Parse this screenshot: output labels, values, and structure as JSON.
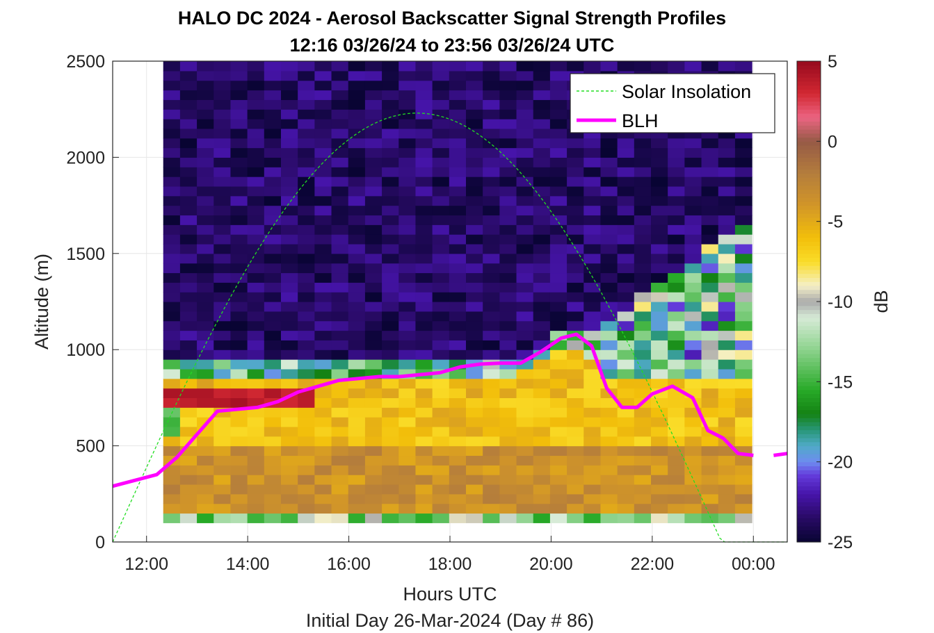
{
  "chart_data": {
    "type": "heatmap",
    "title": "HALO DC 2024 - Aerosol Backscatter Signal Strength Profiles",
    "subtitle": "12:16 03/26/24 to 23:56 03/26/24  UTC",
    "xlabel": "Hours UTC",
    "xlabel2": "Initial Day 26-Mar-2024 (Day # 86)",
    "ylabel": "Altitude (m)",
    "colorbar_label": "dB",
    "xlim_hours": [
      11.33,
      24.67
    ],
    "ylim": [
      0,
      2500
    ],
    "x_ticks": [
      {
        "value": 12,
        "label": "12:00"
      },
      {
        "value": 14,
        "label": "14:00"
      },
      {
        "value": 16,
        "label": "16:00"
      },
      {
        "value": 18,
        "label": "18:00"
      },
      {
        "value": 20,
        "label": "20:00"
      },
      {
        "value": 22,
        "label": "22:00"
      },
      {
        "value": 24,
        "label": "00:00"
      }
    ],
    "y_ticks": [
      {
        "value": 0,
        "label": "0"
      },
      {
        "value": 500,
        "label": "500"
      },
      {
        "value": 1000,
        "label": "1000"
      },
      {
        "value": 1500,
        "label": "1500"
      },
      {
        "value": 2000,
        "label": "2000"
      },
      {
        "value": 2500,
        "label": "2500"
      }
    ],
    "colorbar": {
      "range": [
        -25,
        5
      ],
      "ticks": [
        {
          "value": 5,
          "label": "5"
        },
        {
          "value": 0,
          "label": "0"
        },
        {
          "value": -5,
          "label": "-5"
        },
        {
          "value": -10,
          "label": "-10"
        },
        {
          "value": -15,
          "label": "-15"
        },
        {
          "value": -20,
          "label": "-20"
        },
        {
          "value": -25,
          "label": "-25"
        }
      ]
    },
    "grid": true,
    "legend": {
      "placement": "top-right",
      "entries": [
        {
          "label": "Solar Insolation",
          "color": "#22dd22",
          "style": "dashed"
        },
        {
          "label": "BLH",
          "color": "#ff00ff",
          "style": "solid"
        }
      ]
    },
    "heatmap": {
      "x_start_hours": 12.33,
      "x_end_hours": 23.97,
      "columns": 35,
      "y_bottom": 100,
      "row_height": 50,
      "rows": 48
    },
    "series": [
      {
        "name": "BLH",
        "color": "#ff00ff",
        "x": [
          11.33,
          12.2,
          12.6,
          13.0,
          13.4,
          13.8,
          14.2,
          14.6,
          15.0,
          15.4,
          15.8,
          16.2,
          16.6,
          17.0,
          17.4,
          17.8,
          18.2,
          18.6,
          19.0,
          19.4,
          19.8,
          20.2,
          20.5,
          20.8,
          21.1,
          21.4,
          21.7,
          22.0,
          22.4,
          22.8,
          23.1,
          23.4,
          23.7,
          24.0
        ],
        "y": [
          290,
          350,
          440,
          560,
          680,
          690,
          700,
          730,
          780,
          810,
          840,
          850,
          860,
          860,
          870,
          880,
          910,
          925,
          930,
          930,
          990,
          1060,
          1080,
          1020,
          800,
          700,
          700,
          770,
          810,
          750,
          580,
          540,
          460,
          450
        ]
      },
      {
        "name": "BLH",
        "color": "#ff00ff",
        "x": [
          24.4,
          24.67
        ],
        "y": [
          450,
          460
        ]
      },
      {
        "name": "Solar Insolation",
        "color": "#22dd22",
        "sunrise_hours": 11.33,
        "sunset_hours": 23.37,
        "peak_altitude_equiv": 2230,
        "base_altitude_equiv": 0
      }
    ]
  }
}
